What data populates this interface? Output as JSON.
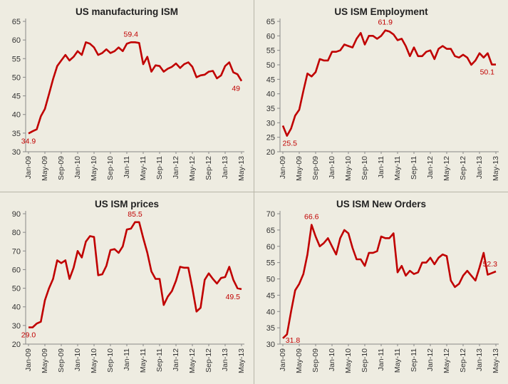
{
  "chart_data": [
    {
      "type": "line",
      "title": "US manufacturing ISM",
      "ylim": [
        30,
        65
      ],
      "yticks": [
        30,
        35,
        40,
        45,
        50,
        55,
        60,
        65
      ],
      "x_tick_labels": [
        "Jan-09",
        "May-09",
        "Sep-09",
        "Jan-10",
        "May-10",
        "Sep-10",
        "Jan-11",
        "May-11",
        "Sep-11",
        "Jan-12",
        "May-12",
        "Sep-12",
        "Jan-13",
        "May-13"
      ],
      "color": "#c00000",
      "series": [
        {
          "name": "US manufacturing ISM",
          "values": [
            34.9,
            35.5,
            36.0,
            39.5,
            41.5,
            45.5,
            49.5,
            53.0,
            54.5,
            56.0,
            54.5,
            55.5,
            57.0,
            56.0,
            59.4,
            59.0,
            58.0,
            56.0,
            56.5,
            57.5,
            56.5,
            57.0,
            58.0,
            57.0,
            59.0,
            59.4,
            59.4,
            59.2,
            53.5,
            55.5,
            51.5,
            53.2,
            53.0,
            51.5,
            52.3,
            52.8,
            53.7,
            52.5,
            53.5,
            54.0,
            52.8,
            50.0,
            50.5,
            50.7,
            51.5,
            51.7,
            49.7,
            50.5,
            53.0,
            54.0,
            51.3,
            50.8,
            49.0
          ]
        }
      ],
      "annotations": [
        {
          "text": "34.9",
          "index": 0
        },
        {
          "text": "59.4",
          "index": 25
        },
        {
          "text": "49",
          "index": 52
        }
      ]
    },
    {
      "type": "line",
      "title": "US ISM Employment",
      "ylim": [
        20,
        65
      ],
      "yticks": [
        20,
        25,
        30,
        35,
        40,
        45,
        50,
        55,
        60,
        65
      ],
      "x_tick_labels": [
        "Jan-09",
        "May-09",
        "Sep-09",
        "Jan-10",
        "May-10",
        "Sep-10",
        "Jan-11",
        "May-11",
        "Sep-11",
        "Jan-12",
        "May-12",
        "Sep-12",
        "Jan-13",
        "May-13"
      ],
      "color": "#c00000",
      "series": [
        {
          "name": "US ISM Employment",
          "values": [
            29.0,
            25.5,
            28.0,
            32.5,
            34.5,
            41.0,
            47.0,
            46.0,
            47.5,
            52.0,
            51.5,
            51.5,
            54.5,
            54.5,
            55.0,
            57.0,
            56.5,
            56.0,
            59.0,
            61.0,
            57.0,
            60.0,
            60.0,
            59.0,
            60.0,
            61.9,
            61.5,
            60.5,
            58.5,
            59.0,
            56.5,
            53.0,
            56.0,
            53.0,
            53.0,
            54.5,
            55.0,
            52.0,
            55.5,
            56.5,
            55.5,
            55.5,
            53.0,
            52.5,
            53.5,
            52.5,
            50.0,
            51.5,
            54.0,
            52.5,
            54.0,
            50.1,
            50.1
          ]
        }
      ],
      "annotations": [
        {
          "text": "25.5",
          "index": 1
        },
        {
          "text": "61.9",
          "index": 25
        },
        {
          "text": "50.1",
          "index": 52
        }
      ]
    },
    {
      "type": "line",
      "title": "US ISM prices",
      "ylim": [
        20,
        90
      ],
      "yticks": [
        20,
        30,
        40,
        50,
        60,
        70,
        80,
        90
      ],
      "x_tick_labels": [
        "Jan-09",
        "May-09",
        "Sep-09",
        "Jan-10",
        "May-10",
        "Sep-10",
        "Jan-11",
        "May-11",
        "Sep-11",
        "Jan-12",
        "May-12",
        "Sep-12",
        "Jan-13",
        "May-13"
      ],
      "color": "#c00000",
      "series": [
        {
          "name": "US ISM prices",
          "values": [
            29.0,
            29.0,
            31.0,
            32.0,
            43.5,
            50.0,
            55.0,
            65.0,
            63.5,
            65.0,
            55.0,
            61.0,
            70.0,
            66.5,
            75.0,
            78.0,
            77.5,
            57.0,
            57.5,
            62.0,
            70.5,
            71.0,
            69.0,
            72.5,
            81.5,
            82.0,
            85.5,
            85.5,
            77.0,
            69.0,
            59.0,
            55.0,
            55.0,
            41.0,
            45.5,
            48.5,
            54.0,
            61.5,
            61.0,
            61.0,
            50.0,
            37.5,
            39.5,
            54.5,
            58.0,
            55.0,
            52.5,
            55.5,
            56.0,
            61.5,
            54.5,
            50.0,
            49.5
          ]
        }
      ],
      "annotations": [
        {
          "text": "29.0",
          "index": 0
        },
        {
          "text": "85.5",
          "index": 26
        },
        {
          "text": "49.5",
          "index": 52
        }
      ]
    },
    {
      "type": "line",
      "title": "US ISM New Orders",
      "ylim": [
        30,
        70
      ],
      "yticks": [
        30,
        35,
        40,
        45,
        50,
        55,
        60,
        65,
        70
      ],
      "x_tick_labels": [
        "Jan-09",
        "May-09",
        "Sep-09",
        "Jan-10",
        "May-10",
        "Sep-10",
        "Jan-11",
        "May-11",
        "Sep-11",
        "Jan-12",
        "May-12",
        "Sep-12",
        "Jan-13",
        "May-13"
      ],
      "color": "#c00000",
      "series": [
        {
          "name": "US ISM New Orders",
          "values": [
            31.8,
            33.0,
            40.0,
            46.5,
            48.5,
            51.5,
            57.5,
            66.6,
            63.0,
            60.0,
            61.0,
            62.5,
            60.0,
            57.5,
            62.5,
            65.0,
            64.0,
            59.5,
            56.0,
            56.0,
            54.0,
            58.0,
            58.0,
            58.5,
            63.0,
            62.5,
            62.5,
            64.0,
            52.0,
            54.0,
            51.0,
            52.5,
            51.5,
            52.0,
            55.0,
            55.0,
            56.5,
            54.5,
            56.5,
            57.5,
            57.0,
            49.5,
            47.5,
            48.5,
            51.0,
            52.5,
            51.0,
            49.5,
            53.5,
            58.0,
            51.3,
            51.8,
            52.3
          ]
        }
      ],
      "annotations": [
        {
          "text": "31.8",
          "index": 0
        },
        {
          "text": "66.6",
          "index": 7
        },
        {
          "text": "52.3",
          "index": 52
        }
      ]
    }
  ]
}
